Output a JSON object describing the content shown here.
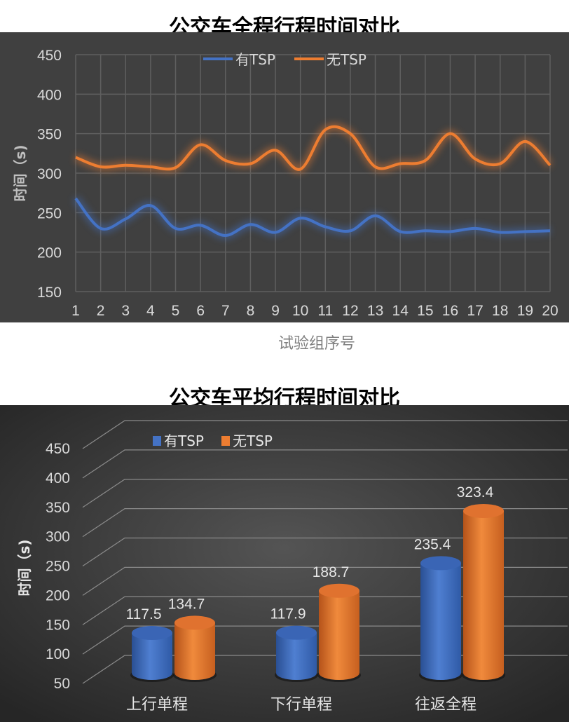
{
  "chart_data": [
    {
      "type": "line",
      "title": "公交车全程行程时间对比",
      "xlabel": "试验组序号",
      "ylabel": "时间（s)",
      "x": [
        1,
        2,
        3,
        4,
        5,
        6,
        7,
        8,
        9,
        10,
        11,
        12,
        13,
        14,
        15,
        16,
        17,
        18,
        19,
        20
      ],
      "ylim": [
        150,
        450
      ],
      "yticks": [
        150,
        200,
        250,
        300,
        350,
        400,
        450
      ],
      "grid": true,
      "legend": "top-center",
      "series": [
        {
          "name": "有TSP",
          "color": "#4472C4",
          "values": [
            268,
            230,
            242,
            259,
            230,
            234,
            221,
            235,
            225,
            243,
            232,
            227,
            246,
            226,
            227,
            226,
            230,
            225,
            226,
            227
          ]
        },
        {
          "name": "无TSP",
          "color": "#ED7D31",
          "values": [
            320,
            308,
            310,
            308,
            307,
            336,
            316,
            312,
            329,
            305,
            355,
            350,
            308,
            312,
            316,
            350,
            318,
            312,
            340,
            310
          ]
        }
      ]
    },
    {
      "type": "bar",
      "title": "公交车平均行程时间对比",
      "ylabel": "时间（s)",
      "categories": [
        "上行单程",
        "下行单程",
        "往返全程"
      ],
      "ylim": [
        50,
        450
      ],
      "yticks": [
        50,
        100,
        150,
        200,
        250,
        300,
        350,
        400,
        450
      ],
      "legend": "top-left",
      "series": [
        {
          "name": "有TSP",
          "color": "#4472C4",
          "values": [
            117.5,
            117.9,
            235.4
          ],
          "labels": [
            "117.5",
            "117.9",
            "235.4"
          ]
        },
        {
          "name": "无TSP",
          "color": "#ED7D31",
          "values": [
            134.7,
            188.7,
            323.4
          ],
          "labels": [
            "134.7",
            "188.7",
            "323.4"
          ]
        }
      ]
    }
  ]
}
